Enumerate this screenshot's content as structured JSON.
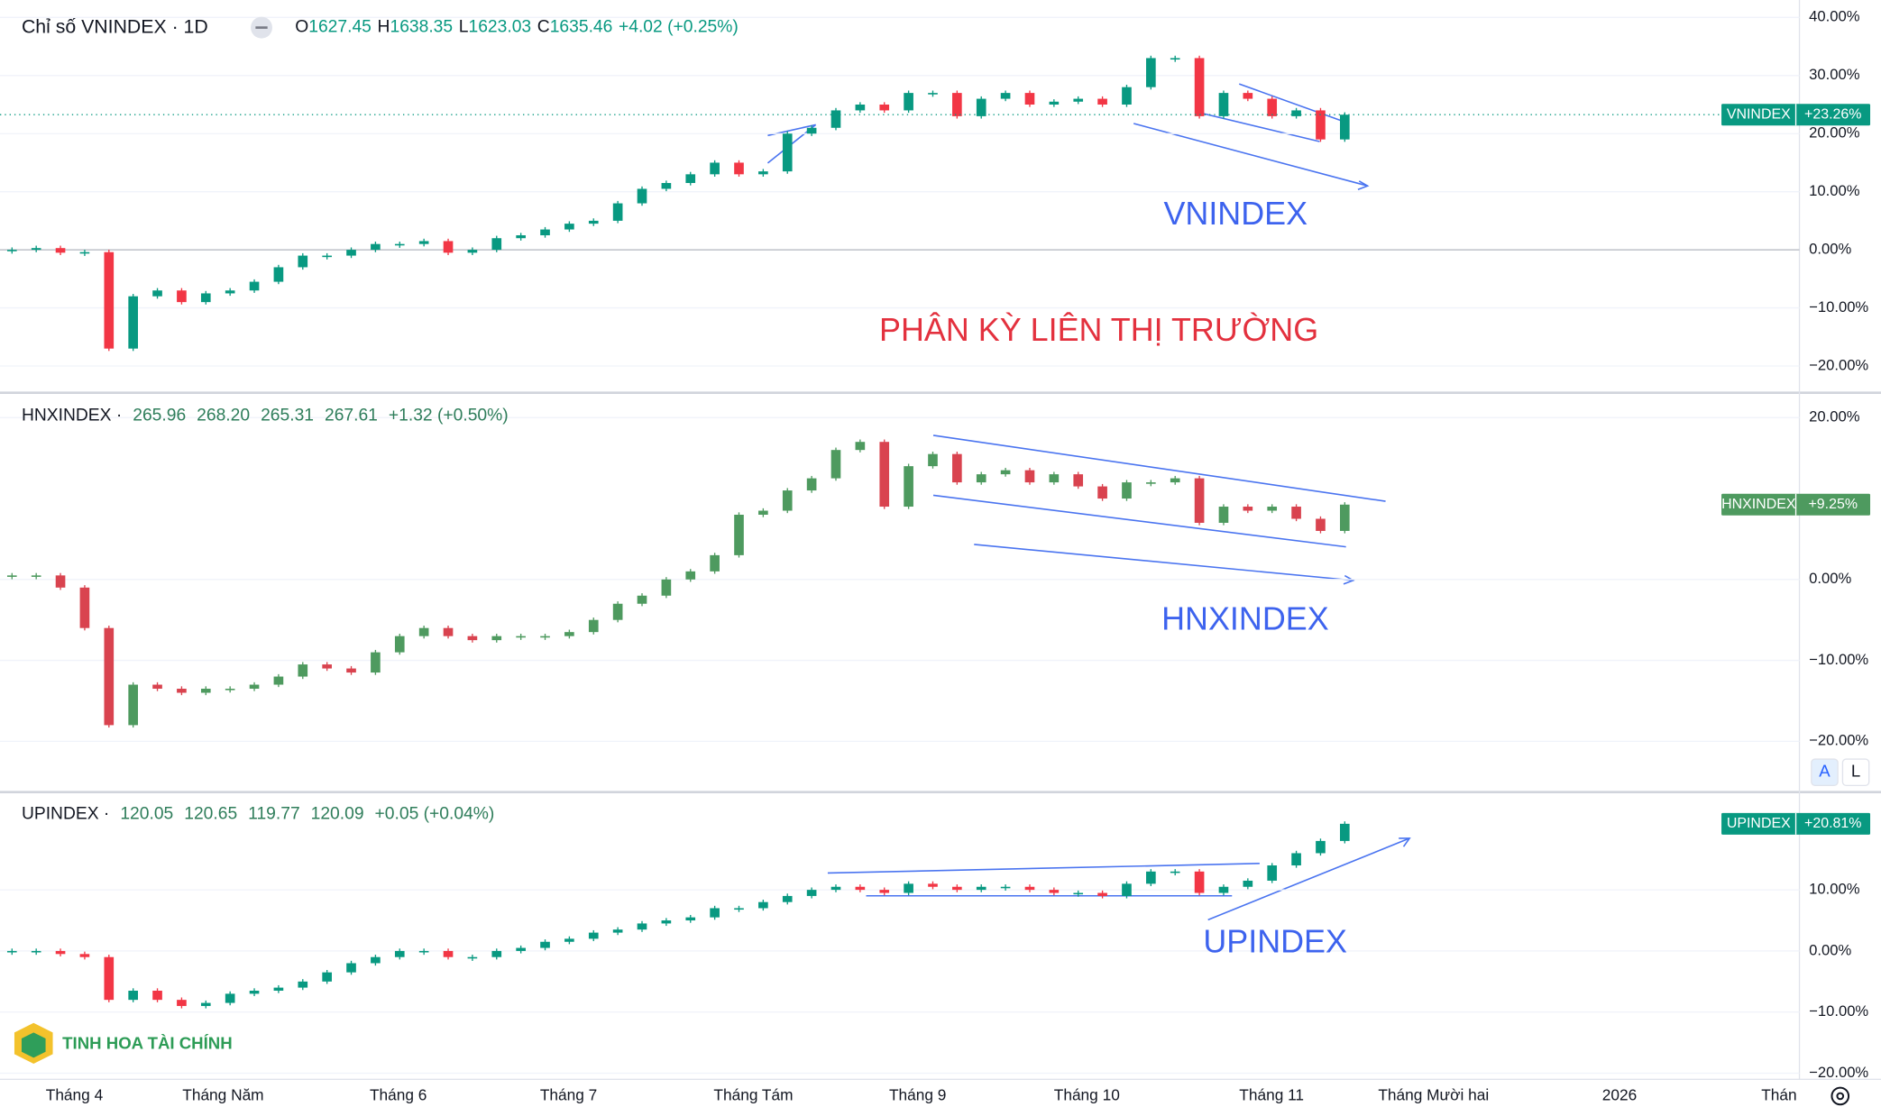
{
  "chart_data": [
    {
      "type": "candlestick",
      "title": "Chỉ số VNINDEX · 1D",
      "ohlc_prefixes": [
        "O",
        "H",
        "L",
        "C"
      ],
      "ohlc": [
        "1627.45",
        "1638.35",
        "1623.03",
        "1635.46",
        "+4.02 (+0.25%)"
      ],
      "series": [
        {
          "name": "VNINDEX",
          "up_color": "#089981",
          "down_color": "#f23645",
          "values": [
            0,
            0.3,
            -0.5,
            -0.4,
            -17,
            -8,
            -7,
            -9,
            -7.5,
            -7,
            -5.5,
            -3,
            -1,
            -1,
            0,
            1,
            1,
            1.5,
            -0.5,
            0,
            2,
            2.5,
            3.5,
            4.5,
            5,
            8,
            10.5,
            11.5,
            13,
            15,
            13,
            13.5,
            20,
            21,
            24,
            25,
            24,
            27,
            27,
            23,
            26,
            27,
            25,
            25.5,
            26,
            25,
            28,
            33,
            33,
            23,
            27,
            26,
            23,
            24,
            19,
            23.26
          ],
          "last_value_label": "+23.26%"
        }
      ],
      "ylim": [
        -24.5,
        43
      ],
      "yticks": [
        {
          "value": 40,
          "label": "40.00%"
        },
        {
          "value": 30,
          "label": "30.00%"
        },
        {
          "value": 20,
          "label": "20.00%"
        },
        {
          "value": 10,
          "label": "10.00%"
        },
        {
          "value": 0,
          "label": "0.00%"
        },
        {
          "value": -10,
          "label": "−10.00%"
        },
        {
          "value": -20,
          "label": "−20.00%"
        }
      ],
      "annotations": [
        "VNINDEX",
        "PHÂN KỲ LIÊN THỊ TRƯỜNG"
      ],
      "grid": true
    },
    {
      "type": "candlestick",
      "title": "HNXINDEX ·",
      "ohlc": [
        "265.96",
        "268.20",
        "265.31",
        "267.61",
        "+1.32 (+0.50%)"
      ],
      "series": [
        {
          "name": "HNXINDEX",
          "up_color": "#4e9a5f",
          "down_color": "#d9434f",
          "values": [
            0.5,
            0.5,
            -1,
            -6,
            -18,
            -13,
            -13.5,
            -14,
            -13.5,
            -13.5,
            -13,
            -12,
            -10.5,
            -11,
            -11.5,
            -9,
            -7,
            -6,
            -7,
            -7.5,
            -7,
            -7,
            -7,
            -6.5,
            -5,
            -3,
            -2,
            0,
            1,
            3,
            8,
            8.5,
            11,
            12.5,
            16,
            17,
            9,
            14,
            15.5,
            12,
            13,
            13.5,
            12,
            13,
            11.5,
            10,
            12,
            12,
            12.5,
            7,
            9,
            8.5,
            9,
            7.5,
            6,
            9.25
          ],
          "last_value_label": "+9.25%"
        }
      ],
      "ylim": [
        -26.2,
        23
      ],
      "yticks": [
        {
          "value": 20,
          "label": "20.00%"
        },
        {
          "value": 0,
          "label": "0.00%"
        },
        {
          "value": -10,
          "label": "−10.00%"
        },
        {
          "value": -20,
          "label": "−20.00%"
        }
      ],
      "annotations": [
        "HNXINDEX"
      ],
      "scale_buttons": [
        "A",
        "L"
      ],
      "grid": true
    },
    {
      "type": "candlestick",
      "title": "UPINDEX ·",
      "ohlc": [
        "120.05",
        "120.65",
        "119.77",
        "120.09",
        "+0.05 (+0.04%)"
      ],
      "series": [
        {
          "name": "UPINDEX",
          "up_color": "#089981",
          "down_color": "#f23645",
          "values": [
            0,
            0,
            -0.5,
            -1,
            -8,
            -6.5,
            -8,
            -9,
            -8.5,
            -7,
            -6.5,
            -6,
            -5,
            -3.5,
            -2,
            -1,
            0,
            0,
            -1,
            -1,
            0,
            0.5,
            1.5,
            2,
            3,
            3.5,
            4.5,
            5,
            5.5,
            7,
            7,
            8,
            9,
            10,
            10.5,
            10,
            9.5,
            11,
            10.5,
            10,
            10.5,
            10.5,
            10,
            9.5,
            9.5,
            9,
            11,
            13,
            13,
            9.5,
            10.5,
            11.5,
            14,
            16,
            18,
            20.81
          ],
          "last_value_label": "+20.81%"
        }
      ],
      "ylim": [
        -21,
        25.9
      ],
      "yticks": [
        {
          "value": 10,
          "label": "10.00%"
        },
        {
          "value": 0,
          "label": "0.00%"
        },
        {
          "value": -10,
          "label": "−10.00%"
        },
        {
          "value": -20,
          "label": "−20.00%"
        }
      ],
      "annotations": [
        "UPINDEX"
      ],
      "grid": true
    }
  ],
  "x_axis": {
    "labels": [
      "Tháng 4",
      "Tháng Năm",
      "Tháng 6",
      "Tháng 7",
      "Tháng Tám",
      "Tháng 9",
      "Tháng 10",
      "Tháng 11",
      "Tháng Mười hai",
      "2026",
      "Thán"
    ]
  },
  "logo": {
    "text": "TINH HOA TÀI CHÍNH"
  }
}
